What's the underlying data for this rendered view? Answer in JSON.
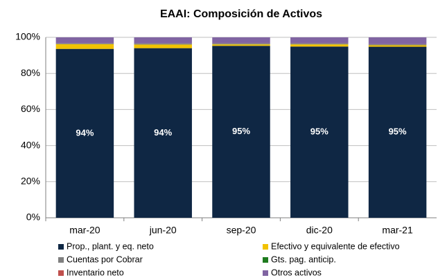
{
  "chart_data": {
    "type": "stacked_bar",
    "title": "EAAI: Composición de Activos",
    "categories": [
      "mar-20",
      "jun-20",
      "sep-20",
      "dic-20",
      "mar-21"
    ],
    "series": [
      {
        "name": "Prop., plant. y eq. neto",
        "color": "#0f2744",
        "values": [
          93.6,
          94.0,
          95.3,
          94.9,
          94.8
        ],
        "value_labels": [
          "94%",
          "94%",
          "95%",
          "95%",
          "95%"
        ]
      },
      {
        "name": "Efectivo y equivalente de efectivo",
        "color": "#f2c200",
        "values": [
          2.6,
          2.0,
          0.8,
          1.2,
          0.8
        ]
      },
      {
        "name": "Cuentas por Cobrar",
        "color": "#7f7f7f",
        "values": [
          0.3,
          0.4,
          0.4,
          0.4,
          0.4
        ]
      },
      {
        "name": "Gts. pag. anticip.",
        "color": "#1e7b1e",
        "values": [
          0.1,
          0.1,
          0.1,
          0.1,
          0.1
        ]
      },
      {
        "name": "Inventario neto",
        "color": "#c0504d",
        "values": [
          0.1,
          0.1,
          0.1,
          0.1,
          0.1
        ]
      },
      {
        "name": "Otros activos",
        "color": "#8064a2",
        "values": [
          3.3,
          3.4,
          3.3,
          3.3,
          3.8
        ]
      }
    ],
    "ylim": [
      0,
      100
    ],
    "yticks": [
      {
        "value": 0,
        "label": "0%"
      },
      {
        "value": 20,
        "label": "20%"
      },
      {
        "value": 40,
        "label": "40%"
      },
      {
        "value": 60,
        "label": "60%"
      },
      {
        "value": 80,
        "label": "80%"
      },
      {
        "value": 100,
        "label": "100%"
      }
    ],
    "grid": true
  }
}
